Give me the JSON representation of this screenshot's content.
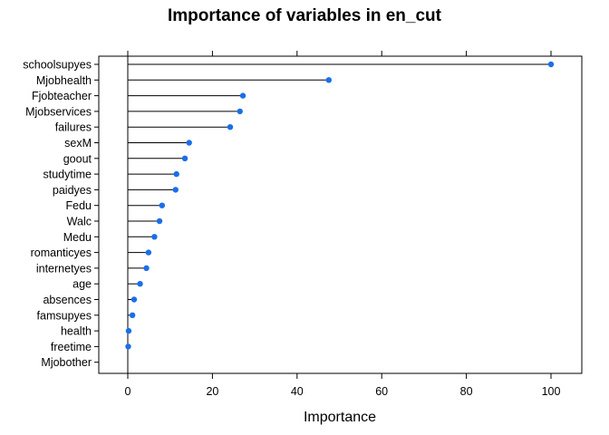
{
  "chart_data": {
    "type": "dot",
    "title": "Importance of variables in en_cut",
    "xlabel": "Importance",
    "ylabel": "",
    "xlim": [
      -7,
      107
    ],
    "xticks": [
      0,
      20,
      40,
      60,
      80,
      100
    ],
    "point_color": "#1a6fe8",
    "categories": [
      "schoolsupyes",
      "Mjobhealth",
      "Fjobteacher",
      "Mjobservices",
      "failures",
      "sexM",
      "goout",
      "studytime",
      "paidyes",
      "Fedu",
      "Walc",
      "Medu",
      "romanticyes",
      "internetyes",
      "age",
      "absences",
      "famsupyes",
      "health",
      "freetime",
      "Mjobother"
    ],
    "values": [
      100,
      47.5,
      27.2,
      26.5,
      24.2,
      14.5,
      13.5,
      11.5,
      11.3,
      8.1,
      7.5,
      6.3,
      4.9,
      4.4,
      2.9,
      1.5,
      1.1,
      0.2,
      0.1,
      null
    ]
  }
}
